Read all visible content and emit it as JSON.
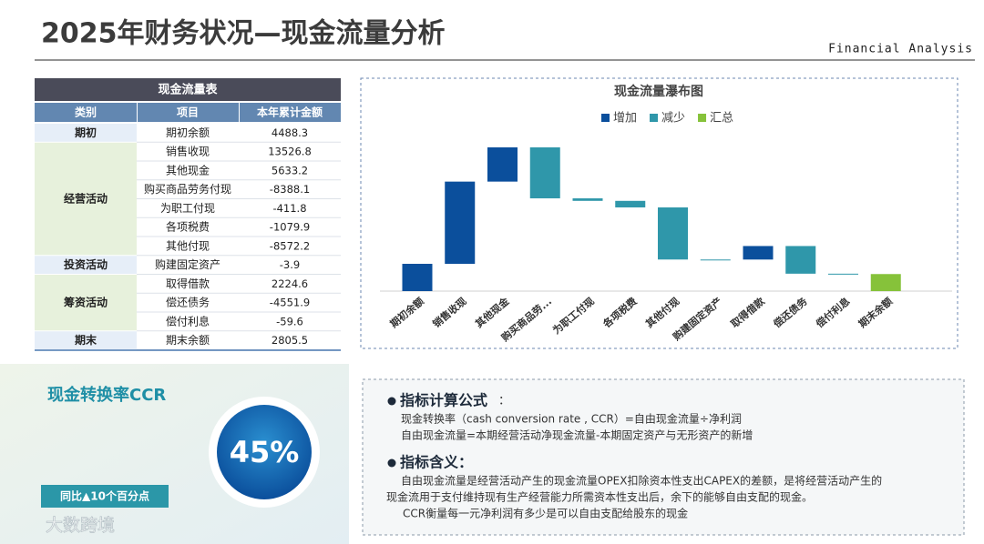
{
  "header": {
    "title": "2025年财务状况—现金流量分析",
    "subtitle": "Financial Analysis"
  },
  "table": {
    "title": "现金流量表",
    "columns": [
      "类别",
      "项目",
      "本年累计金额"
    ],
    "groups": [
      {
        "category": "期初",
        "rows": [
          [
            "期初余额",
            4488.3
          ]
        ]
      },
      {
        "category": "经营活动",
        "rows": [
          [
            "销售收现",
            13526.8
          ],
          [
            "其他现金",
            5633.2
          ],
          [
            "购买商品劳务付现",
            -8388.1
          ],
          [
            "为职工付现",
            -411.8
          ],
          [
            "各项税费",
            -1079.9
          ],
          [
            "其他付现",
            -8572.2
          ]
        ]
      },
      {
        "category": "投资活动",
        "rows": [
          [
            "购建固定资产",
            -3.9
          ]
        ]
      },
      {
        "category": "筹资活动",
        "rows": [
          [
            "取得借款",
            2224.6
          ],
          [
            "偿还债务",
            -4551.9
          ],
          [
            "偿付利息",
            -59.6
          ]
        ]
      },
      {
        "category": "期末",
        "rows": [
          [
            "期末余额",
            2805.5
          ]
        ]
      }
    ]
  },
  "chart_data": {
    "type": "waterfall",
    "title": "现金流量瀑布图",
    "categories": [
      "期初余额",
      "销售收现",
      "其他现金",
      "购买商品劳...",
      "为职工付现",
      "各项税费",
      "其他付现",
      "购建固定资产",
      "取得借款",
      "偿还债务",
      "偿付利息",
      "期末余额"
    ],
    "values": [
      4488.3,
      13526.8,
      5633.2,
      -8388.1,
      -411.8,
      -1079.9,
      -8572.2,
      -3.9,
      2224.6,
      -4551.9,
      -59.6,
      2805.5
    ],
    "totals": [
      11
    ],
    "legend": [
      {
        "name": "增加",
        "color": "#0b4f9c"
      },
      {
        "name": "减少",
        "color": "#2f97aa"
      },
      {
        "name": "汇总",
        "color": "#86c23a"
      }
    ]
  },
  "kpi": {
    "title": "现金转换率CCR",
    "value": "45%",
    "badge": "同比▲10个百分点"
  },
  "watermark": "大数跨境",
  "notes": [
    {
      "heading": "指标计算公式",
      "suffix": "：",
      "lines": [
        "现金转换率（cash conversion rate , CCR）=自由现金流量÷净利润",
        "自由现金流量=本期经营活动净现金流量-本期固定资产与无形资产的新增"
      ]
    },
    {
      "heading": "指标含义：",
      "lines": [
        "自由现金流量是经营活动产生的现金流量OPEX扣除资本性支出CAPEX的差额，是将经营活动产生的",
        "现金流用于支付维持现有生产经营能力所需资本性支出后，余下的能够自由支配的现金。",
        "CCR衡量每一元净利润有多少是可以自由支配给股东的现金"
      ]
    }
  ]
}
